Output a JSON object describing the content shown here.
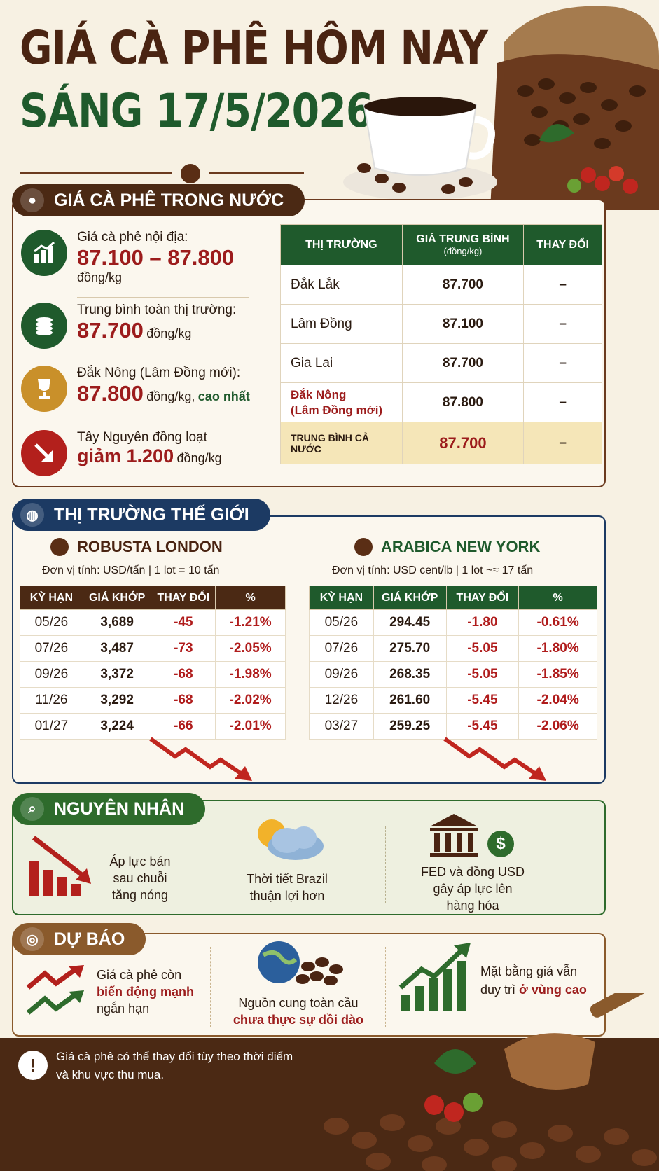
{
  "header": {
    "title_line1": "GIÁ CÀ PHÊ HÔM NAY",
    "title_line2": "SÁNG 17/5/2026"
  },
  "domestic": {
    "section_title": "GIÁ CÀ PHÊ TRONG NƯỚC",
    "items": [
      {
        "label": "Giá cà phê nội địa:",
        "value": "87.100 – 87.800",
        "unit": "đồng/kg",
        "icon": "chart-up-icon"
      },
      {
        "label": "Trung bình toàn thị trường:",
        "value": "87.700",
        "unit": "đồng/kg",
        "icon": "coins-icon"
      },
      {
        "label": "Đắk Nông (Lâm Đồng mới):",
        "value": "87.800",
        "unit": "đồng/kg,",
        "note": "cao nhất",
        "icon": "trophy-icon"
      },
      {
        "label": "Tây Nguyên đồng loạt",
        "value": "giảm 1.200",
        "unit": "đồng/kg",
        "icon": "arrow-down-icon"
      }
    ],
    "table": {
      "headers": [
        "THỊ TRƯỜNG",
        "GIÁ TRUNG BÌNH",
        "(đồng/kg)",
        "THAY ĐỔI"
      ],
      "rows": [
        {
          "market": "Đắk Lắk",
          "price": "87.700",
          "change": "–"
        },
        {
          "market": "Lâm Đồng",
          "price": "87.100",
          "change": "–"
        },
        {
          "market": "Gia Lai",
          "price": "87.700",
          "change": "–"
        },
        {
          "market": "Đắk Nông",
          "market2": "(Lâm Đồng mới)",
          "price": "87.800",
          "change": "–"
        }
      ],
      "total": {
        "label": "TRUNG BÌNH CẢ NƯỚC",
        "price": "87.700",
        "change": "–"
      }
    }
  },
  "world": {
    "section_title": "THỊ TRƯỜNG THẾ GIỚI",
    "robusta": {
      "title": "ROBUSTA LONDON",
      "unit": "Đơn vị tính: USD/tấn   |   1 lot = 10 tấn",
      "headers": [
        "KỲ HẠN",
        "GIÁ KHỚP",
        "THAY ĐỔI",
        "%"
      ],
      "rows": [
        [
          "05/26",
          "3,689",
          "-45",
          "-1.21%"
        ],
        [
          "07/26",
          "3,487",
          "-73",
          "-2.05%"
        ],
        [
          "09/26",
          "3,372",
          "-68",
          "-1.98%"
        ],
        [
          "11/26",
          "3,292",
          "-68",
          "-2.02%"
        ],
        [
          "01/27",
          "3,224",
          "-66",
          "-2.01%"
        ]
      ]
    },
    "arabica": {
      "title": "ARABICA NEW YORK",
      "unit": "Đơn vị tính: USD cent/lb   |   1 lot ~≈ 17 tấn",
      "headers": [
        "KỲ HẠN",
        "GIÁ KHỚP",
        "THAY ĐỔI",
        "%"
      ],
      "rows": [
        [
          "05/26",
          "294.45",
          "-1.80",
          "-0.61%"
        ],
        [
          "07/26",
          "275.70",
          "-5.05",
          "-1.80%"
        ],
        [
          "09/26",
          "268.35",
          "-5.05",
          "-1.85%"
        ],
        [
          "12/26",
          "261.60",
          "-5.45",
          "-2.04%"
        ],
        [
          "03/27",
          "259.25",
          "-5.45",
          "-2.06%"
        ]
      ]
    }
  },
  "causes": {
    "section_title": "NGUYÊN NHÂN",
    "items": [
      {
        "line1": "Áp lực bán",
        "line2": "sau chuỗi",
        "line3": "tăng nóng"
      },
      {
        "line1": "Thời tiết Brazil",
        "line2": "thuận lợi hơn"
      },
      {
        "line1": "FED và đồng USD",
        "line2": "gây áp lực lên",
        "line3": "hàng hóa"
      }
    ],
    "dollar_symbol": "$"
  },
  "forecast": {
    "section_title": "DỰ BÁO",
    "items": [
      {
        "line1": "Giá cà phê còn",
        "line2": "biến động mạnh",
        "line3": "ngắn hạn"
      },
      {
        "line1": "Nguồn cung toàn cầu",
        "line2": "chưa thực sự dồi dào"
      },
      {
        "line1": "Mặt bằng giá vẫn",
        "line2a": "duy trì ",
        "line2b": "ở vùng cao"
      }
    ]
  },
  "footer": {
    "line1": "Giá cà phê có thể thay đổi tùy theo thời điểm",
    "line2": "và khu vực thu mua.",
    "icon": "!"
  }
}
